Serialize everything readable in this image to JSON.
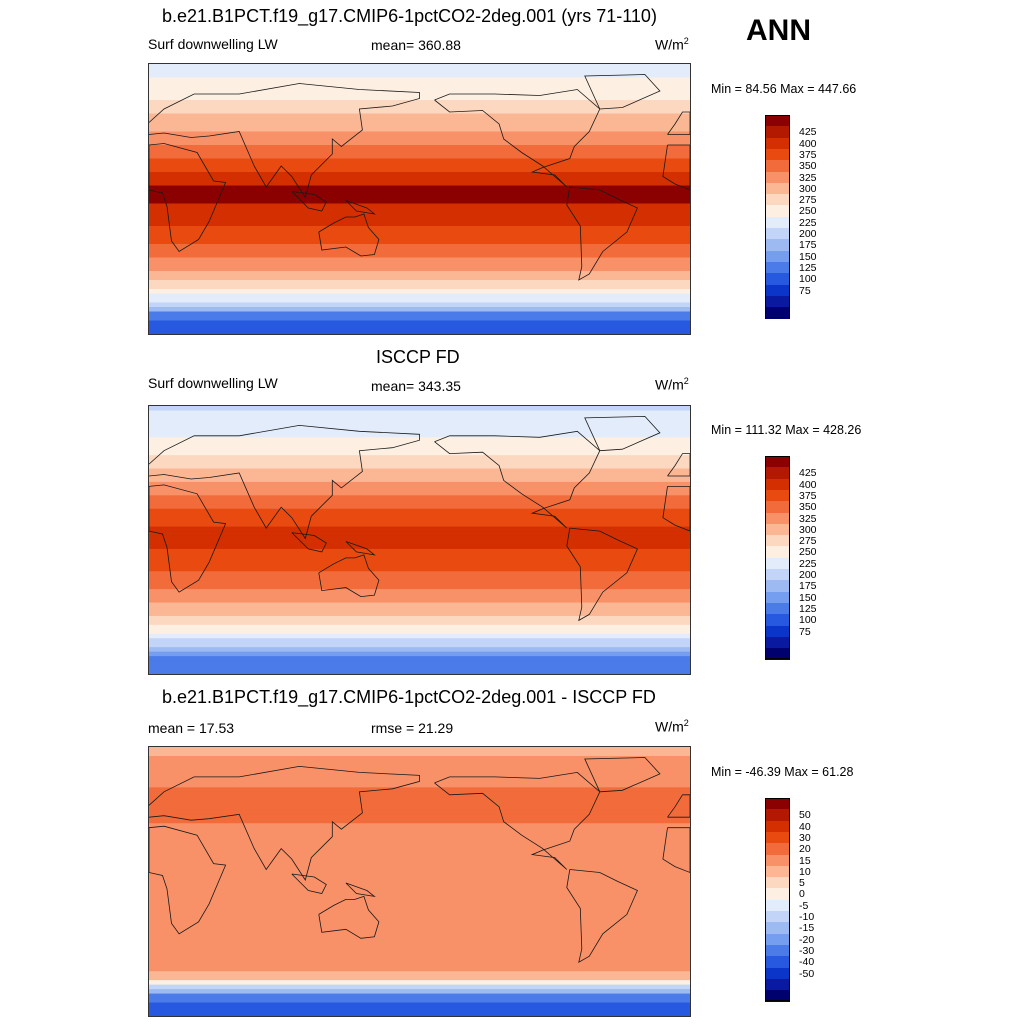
{
  "season": "ANN",
  "panels": [
    {
      "title": "b.e21.B1PCT.f19_g17.CMIP6-1pctCO2-2deg.001 (yrs 71-110)",
      "left": "Surf downwelling LW",
      "center": "mean= 360.88",
      "units": "W/m",
      "units_sup": "2",
      "minmax": "Min =  84.56 Max = 447.66",
      "colorbar": {
        "colors": [
          "#8b0000",
          "#b31800",
          "#d42f00",
          "#e84a10",
          "#f26b3a",
          "#f89068",
          "#fbb694",
          "#fdd8c0",
          "#fdf0e2",
          "#e2ecfb",
          "#c2d4f7",
          "#9dbaf3",
          "#759df0",
          "#4a7be9",
          "#2758e0",
          "#0b34c8",
          "#0a1aa0",
          "#00006e"
        ],
        "labels": [
          "425",
          "400",
          "375",
          "350",
          "325",
          "300",
          "275",
          "250",
          "225",
          "200",
          "175",
          "150",
          "125",
          "100",
          "75"
        ]
      },
      "field": {
        "min": 84.56,
        "max": 447.66,
        "lat_profile": [
          [
            -90,
            110
          ],
          [
            -78,
            130
          ],
          [
            -70,
            215
          ],
          [
            -64,
            245
          ],
          [
            -58,
            285
          ],
          [
            -50,
            318
          ],
          [
            -40,
            345
          ],
          [
            -30,
            372
          ],
          [
            -20,
            395
          ],
          [
            -10,
            418
          ],
          [
            0,
            428
          ],
          [
            10,
            425
          ],
          [
            20,
            398
          ],
          [
            30,
            368
          ],
          [
            40,
            340
          ],
          [
            50,
            315
          ],
          [
            60,
            292
          ],
          [
            70,
            268
          ],
          [
            80,
            250
          ],
          [
            90,
            235
          ]
        ]
      }
    },
    {
      "title": "ISCCP FD",
      "left": "Surf downwelling LW",
      "center": "mean= 343.35",
      "units": "W/m",
      "units_sup": "2",
      "minmax": "Min = 111.32 Max = 428.26",
      "colorbar": {
        "colors": [
          "#8b0000",
          "#b31800",
          "#d42f00",
          "#e84a10",
          "#f26b3a",
          "#f89068",
          "#fbb694",
          "#fdd8c0",
          "#fdf0e2",
          "#e2ecfb",
          "#c2d4f7",
          "#9dbaf3",
          "#759df0",
          "#4a7be9",
          "#2758e0",
          "#0b34c8",
          "#0a1aa0",
          "#00006e"
        ],
        "labels": [
          "425",
          "400",
          "375",
          "350",
          "325",
          "300",
          "275",
          "250",
          "225",
          "200",
          "175",
          "150",
          "125",
          "100",
          "75"
        ]
      },
      "field": {
        "min": 111.32,
        "max": 428.26,
        "lat_profile": [
          [
            -90,
            125
          ],
          [
            -78,
            150
          ],
          [
            -70,
            210
          ],
          [
            -64,
            240
          ],
          [
            -58,
            270
          ],
          [
            -50,
            300
          ],
          [
            -40,
            330
          ],
          [
            -30,
            355
          ],
          [
            -20,
            375
          ],
          [
            -10,
            395
          ],
          [
            0,
            405
          ],
          [
            10,
            400
          ],
          [
            20,
            378
          ],
          [
            30,
            350
          ],
          [
            40,
            322
          ],
          [
            50,
            295
          ],
          [
            60,
            268
          ],
          [
            70,
            248
          ],
          [
            80,
            232
          ],
          [
            90,
            220
          ]
        ]
      }
    },
    {
      "title": "b.e21.B1PCT.f19_g17.CMIP6-1pctCO2-2deg.001 - ISCCP FD",
      "left": "mean =  17.53",
      "center": "rmse =  21.29",
      "units": "W/m",
      "units_sup": "2",
      "minmax": "Min = -46.39 Max =  61.28",
      "colorbar": {
        "colors": [
          "#8b0000",
          "#b31800",
          "#d42f00",
          "#e84a10",
          "#f26b3a",
          "#f89068",
          "#fbb694",
          "#fdd8c0",
          "#fdf0e2",
          "#e2ecfb",
          "#c2d4f7",
          "#9dbaf3",
          "#759df0",
          "#4a7be9",
          "#2758e0",
          "#0b34c8",
          "#0a1aa0",
          "#00006e"
        ],
        "labels": [
          "50",
          "40",
          "30",
          "20",
          "15",
          "10",
          "5",
          "0",
          "-5",
          "-10",
          "-15",
          "-20",
          "-30",
          "-40",
          "-50"
        ]
      },
      "field": {
        "min": -46.39,
        "max": 61.28,
        "lat_profile": [
          [
            -90,
            -35
          ],
          [
            -80,
            -30
          ],
          [
            -72,
            -10
          ],
          [
            -65,
            12
          ],
          [
            -55,
            20
          ],
          [
            -40,
            18
          ],
          [
            -20,
            16
          ],
          [
            0,
            18
          ],
          [
            20,
            17
          ],
          [
            40,
            20
          ],
          [
            60,
            21
          ],
          [
            75,
            17
          ],
          [
            90,
            14
          ]
        ]
      }
    }
  ]
}
